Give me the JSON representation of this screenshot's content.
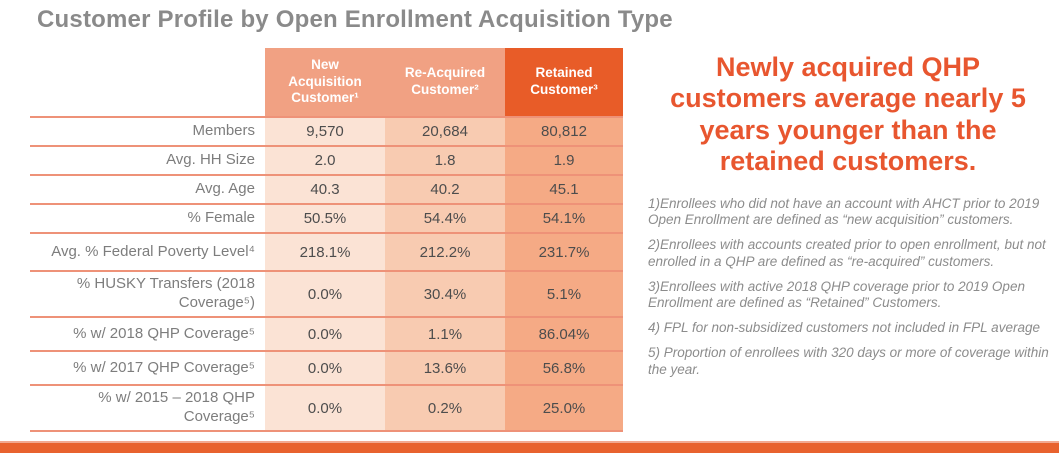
{
  "title": "Customer Profile by Open Enrollment Acquisition Type",
  "callout": "Newly acquired QHP customers average nearly 5 years younger than the retained customers.",
  "table": {
    "columns": [
      "New Acquisition Customer¹",
      "Re-Acquired Customer²",
      "Retained Customer³"
    ],
    "rows": [
      {
        "label": "Members",
        "values": [
          "9,570",
          "20,684",
          "80,812"
        ]
      },
      {
        "label": "Avg. HH Size",
        "values": [
          "2.0",
          "1.8",
          "1.9"
        ]
      },
      {
        "label": "Avg. Age",
        "values": [
          "40.3",
          "40.2",
          "45.1"
        ]
      },
      {
        "label": "% Female",
        "values": [
          "50.5%",
          "54.4%",
          "54.1%"
        ]
      },
      {
        "label": "Avg. % Federal Poverty Level⁴",
        "values": [
          "218.1%",
          "212.2%",
          "231.7%"
        ]
      },
      {
        "label": "% HUSKY Transfers (2018 Coverage⁵)",
        "values": [
          "0.0%",
          "30.4%",
          "5.1%"
        ]
      },
      {
        "label": "% w/ 2018 QHP Coverage⁵",
        "values": [
          "0.0%",
          "1.1%",
          "86.04%"
        ]
      },
      {
        "label": "% w/ 2017 QHP Coverage⁵",
        "values": [
          "0.0%",
          "13.6%",
          "56.8%"
        ]
      },
      {
        "label": "% w/ 2015 – 2018 QHP Coverage⁵",
        "values": [
          "0.0%",
          "0.2%",
          "25.0%"
        ]
      }
    ]
  },
  "footnotes": [
    "1)Enrollees who did not have an account with AHCT prior to 2019 Open Enrollment are defined as “new acquisition” customers.",
    "2)Enrollees with accounts created prior to open enrollment, but not enrolled in a QHP are defined as “re-acquired” customers.",
    "3)Enrollees with active 2018 QHP coverage prior to 2019 Open Enrollment are defined as “Retained” Customers.",
    "4) FPL for non-subsidized customers not included in FPL average",
    "5) Proportion of enrollees with 320 days or more of coverage within the year."
  ],
  "colors": {
    "accent_orange": "#e8622e",
    "header_dark_orange": "#e85c28",
    "header_salmon": "#f1a183",
    "col1_bg": "#fbe3d5",
    "col2_bg": "#f8cbb1",
    "col3_bg": "#f5aa85",
    "divider_line": "#ee9278",
    "callout_text": "#e8562f",
    "title_gray": "#8a8a8a",
    "footnote_gray": "#8c8c8c"
  },
  "chart_data": {
    "type": "table",
    "title": "Customer Profile by Open Enrollment Acquisition Type",
    "columns": [
      "Metric",
      "New Acquisition Customer¹",
      "Re-Acquired Customer²",
      "Retained Customer³"
    ],
    "rows": [
      [
        "Members",
        "9,570",
        "20,684",
        "80,812"
      ],
      [
        "Avg. HH Size",
        "2.0",
        "1.8",
        "1.9"
      ],
      [
        "Avg. Age",
        "40.3",
        "40.2",
        "45.1"
      ],
      [
        "% Female",
        "50.5%",
        "54.4%",
        "54.1%"
      ],
      [
        "Avg. % Federal Poverty Level⁴",
        "218.1%",
        "212.2%",
        "231.7%"
      ],
      [
        "% HUSKY Transfers (2018 Coverage⁵)",
        "0.0%",
        "30.4%",
        "5.1%"
      ],
      [
        "% w/ 2018 QHP Coverage⁵",
        "0.0%",
        "1.1%",
        "86.04%"
      ],
      [
        "% w/ 2017 QHP Coverage⁵",
        "0.0%",
        "13.6%",
        "56.8%"
      ],
      [
        "% w/ 2015 – 2018 QHP Coverage⁵",
        "0.0%",
        "0.2%",
        "25.0%"
      ]
    ],
    "annotation": "Newly acquired QHP customers average nearly 5 years younger than the retained customers."
  }
}
